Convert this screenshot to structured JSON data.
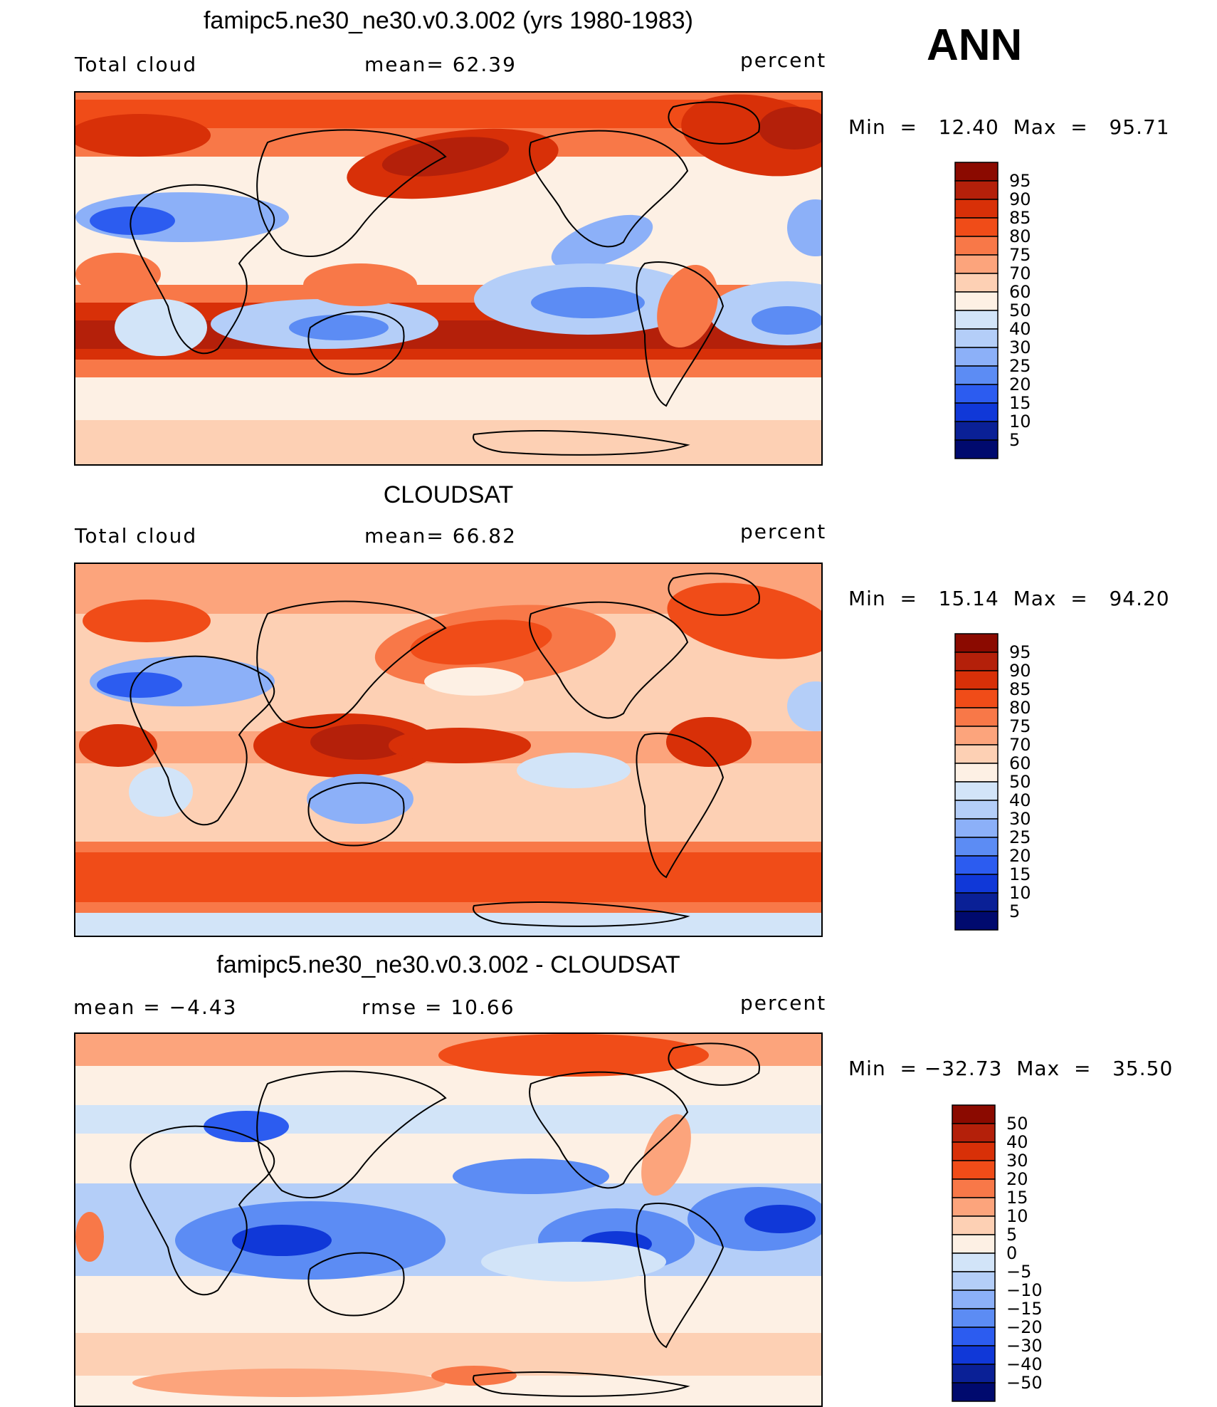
{
  "season": "ANN",
  "chart_data": [
    {
      "type": "heatmap",
      "title": "famipc5.ne30_ne30.v0.3.002 (yrs 1980-1983)",
      "left_label": "Total cloud",
      "center_label": "mean=   62.39",
      "right_label": "percent",
      "stats": "Min  =   12.40  Max  =   95.71",
      "mean": 62.39,
      "min": 12.4,
      "max": 95.71,
      "units": "percent",
      "levels": [
        "95",
        "90",
        "85",
        "80",
        "75",
        "70",
        "60",
        "50",
        "40",
        "30",
        "25",
        "20",
        "15",
        "10",
        "5"
      ],
      "colors": [
        "#8b0a00",
        "#b4200a",
        "#d83008",
        "#f04c18",
        "#f87848",
        "#fca47c",
        "#fdd0b4",
        "#fdf0e4",
        "#d2e4f8",
        "#b4cef8",
        "#8cb0f8",
        "#5c8cf4",
        "#2c5cf0",
        "#1038d8",
        "#0a2096",
        "#000a6e"
      ],
      "pattern": "model"
    },
    {
      "type": "heatmap",
      "title": "CLOUDSAT",
      "left_label": "Total cloud",
      "center_label": "mean=   66.82",
      "right_label": "percent",
      "stats": "Min  =   15.14  Max  =   94.20",
      "mean": 66.82,
      "min": 15.14,
      "max": 94.2,
      "units": "percent",
      "levels": [
        "95",
        "90",
        "85",
        "80",
        "75",
        "70",
        "60",
        "50",
        "40",
        "30",
        "25",
        "20",
        "15",
        "10",
        "5"
      ],
      "colors": [
        "#8b0a00",
        "#b4200a",
        "#d83008",
        "#f04c18",
        "#f87848",
        "#fca47c",
        "#fdd0b4",
        "#fdf0e4",
        "#d2e4f8",
        "#b4cef8",
        "#8cb0f8",
        "#5c8cf4",
        "#2c5cf0",
        "#1038d8",
        "#0a2096",
        "#000a6e"
      ],
      "pattern": "obs"
    },
    {
      "type": "heatmap",
      "title": "famipc5.ne30_ne30.v0.3.002 - CLOUDSAT",
      "left_label": "mean  =    −4.43",
      "center_label": "rmse  =    10.66",
      "right_label": "percent",
      "stats": "Min  = −32.73  Max  =   35.50",
      "mean": -4.43,
      "rmse": 10.66,
      "min": -32.73,
      "max": 35.5,
      "units": "percent",
      "levels": [
        "50",
        "40",
        "30",
        "20",
        "15",
        "10",
        "5",
        "0",
        "−5",
        "−10",
        "−15",
        "−20",
        "−30",
        "−40",
        "−50"
      ],
      "colors": [
        "#8b0a00",
        "#b4200a",
        "#d83008",
        "#f04c18",
        "#f87848",
        "#fca47c",
        "#fdd0b4",
        "#fdf0e4",
        "#d2e4f8",
        "#b4cef8",
        "#8cb0f8",
        "#5c8cf4",
        "#2c5cf0",
        "#1038d8",
        "#0a2096",
        "#000a6e"
      ],
      "pattern": "diff"
    }
  ]
}
